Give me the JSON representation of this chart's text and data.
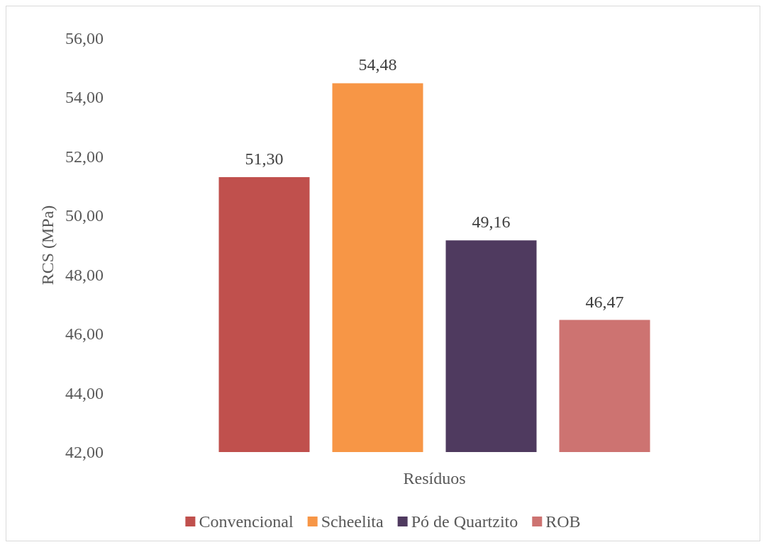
{
  "chart_data": {
    "type": "bar",
    "xlabel": "Resíduos",
    "ylabel": "RCS (MPa)",
    "categories": [
      null
    ],
    "series": [
      {
        "name": "Convencional",
        "color": "#c0504d",
        "values": [
          51.3
        ],
        "value_labels": [
          "51,30"
        ]
      },
      {
        "name": "Scheelita",
        "color": "#f79646",
        "values": [
          54.48
        ],
        "value_labels": [
          "54,48"
        ]
      },
      {
        "name": "Pó de Quartzito",
        "color": "#4f3a5f",
        "values": [
          49.16
        ],
        "value_labels": [
          "49,16"
        ]
      },
      {
        "name": "ROB",
        "color": "#cd7371",
        "values": [
          46.47
        ],
        "value_labels": [
          "46,47"
        ]
      }
    ],
    "ylim": [
      42,
      56
    ],
    "yticks": [
      {
        "value": 42,
        "label": "42,00"
      },
      {
        "value": 44,
        "label": "44,00"
      },
      {
        "value": 46,
        "label": "46,00"
      },
      {
        "value": 48,
        "label": "48,00"
      },
      {
        "value": 50,
        "label": "50,00"
      },
      {
        "value": 52,
        "label": "52,00"
      },
      {
        "value": 54,
        "label": "54,00"
      },
      {
        "value": 56,
        "label": "56,00"
      }
    ],
    "grid": false,
    "legend": "bottom"
  }
}
